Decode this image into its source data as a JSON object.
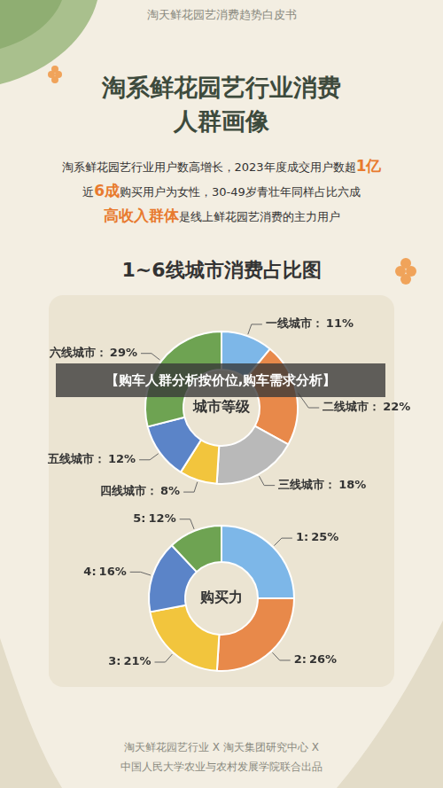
{
  "header": "淘天鲜花园艺消费趋势白皮书",
  "title": [
    "淘系鲜花园艺行业消费",
    "人群画像"
  ],
  "description": [
    [
      {
        "text": "淘系鲜花园艺行业用户数高增长，2023年度成交用户数超",
        "highlight": false
      },
      {
        "text": "1亿",
        "highlight": true
      }
    ],
    [
      {
        "text": "近",
        "highlight": false
      },
      {
        "text": "6成",
        "highlight": true
      },
      {
        "text": "购买用户为女性，30-49岁青壮年同样占比六成",
        "highlight": false
      }
    ],
    [
      {
        "text": "高收入群体",
        "highlight": true
      },
      {
        "text": "是线上鲜花园艺消费的主力用户",
        "highlight": false
      }
    ]
  ],
  "section_title": "1~6线城市消费占比图",
  "banner": "【购车人群分析按价位,购车需求分析】",
  "footer": [
    "淘天鲜花园艺行业 X 淘天集团研究中心 X",
    "中国人民大学农业与农村发展学院联合出品"
  ],
  "chart_data": [
    {
      "type": "doughnut",
      "title": "城市等级",
      "categories": [
        "一线城市：",
        "二线城市：",
        "三线城市：",
        "四线城市：",
        "五线城市：",
        "六线城市："
      ],
      "values": [
        11,
        22,
        18,
        8,
        12,
        29
      ],
      "value_labels": [
        "11%",
        "22%",
        "18%",
        "8%",
        "12%",
        "29%"
      ],
      "colors": [
        "#7db7e8",
        "#e8894a",
        "#b9b9b9",
        "#f2c53d",
        "#5b84c8",
        "#6ea352"
      ],
      "data_labels": true
    },
    {
      "type": "doughnut",
      "title": "购买力",
      "categories": [
        "1:",
        "2:",
        "3:",
        "4:",
        "5:"
      ],
      "values": [
        25,
        26,
        21,
        16,
        12
      ],
      "value_labels": [
        "25%",
        "26%",
        "21%",
        "16%",
        "12%"
      ],
      "colors": [
        "#7db7e8",
        "#e8894a",
        "#f2c53d",
        "#5b84c8",
        "#6ea352"
      ],
      "data_labels": true
    }
  ]
}
